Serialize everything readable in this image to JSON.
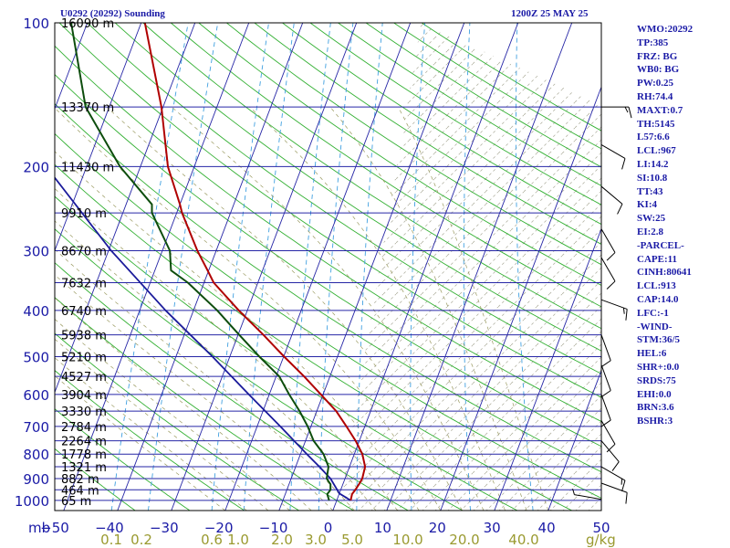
{
  "header": {
    "station_title": "U0292 (20292) Sounding",
    "time_label": "1200Z 25 MAY 25"
  },
  "indices": [
    "WMO:20292",
    "TP:385",
    "FRZ: BG",
    "WB0: BG",
    "PW:0.25",
    "RH:74.4",
    "MAXT:0.7",
    "TH:5145",
    "L57:6.6",
    "LCL:967",
    "LI:14.2",
    "SI:10.8",
    "TT:43",
    "KI:4",
    "SW:25",
    "EI:2.8",
    "-PARCEL-",
    "CAPE:11",
    "CINH:80641",
    "LCL:913",
    "CAP:14.0",
    "LFC:-1",
    "-WIND-",
    "STM:36/5",
    "HEL:6",
    "SHR+:0.0",
    "SRDS:75",
    "EHI:0.0",
    "BRN:3.6",
    "BSHR:3"
  ],
  "colors": {
    "isobar": "#2626a6",
    "temperature": "#b00000",
    "dewpoint": "#0d4d0d",
    "parcel": "#1a1a9a",
    "dry_adiabat": "#33b033",
    "moist_adiabat": "#9a9a60",
    "mixing_ratio": "#40a0e0",
    "wind_barb": "#000000",
    "axis_text": "#1a1aa6",
    "mixing_text": "#9a9a30"
  },
  "chart_data": {
    "type": "skewt",
    "pressure_unit": "mb",
    "pressure_levels": [
      100,
      200,
      300,
      400,
      500,
      600,
      700,
      800,
      900,
      1000
    ],
    "temperature_ticks": [
      -50,
      -40,
      -30,
      -20,
      -10,
      0,
      10,
      20,
      30,
      40,
      50
    ],
    "mixing_ratio_labels": [
      "0.1",
      "0.2",
      "0.6",
      "1.0",
      "2.0",
      "3.0",
      "5.0",
      "10.0",
      "20.0",
      "40.0"
    ],
    "mixing_ratio_unit": "g/kg",
    "heights": [
      {
        "p": 100,
        "label": "16090 m"
      },
      {
        "p": 150,
        "label": "13370 m"
      },
      {
        "p": 200,
        "label": "11430 m"
      },
      {
        "p": 250,
        "label": "9910 m"
      },
      {
        "p": 300,
        "label": "8670 m"
      },
      {
        "p": 350,
        "label": "7632 m"
      },
      {
        "p": 400,
        "label": "6740 m"
      },
      {
        "p": 450,
        "label": "5938 m"
      },
      {
        "p": 500,
        "label": "5210 m"
      },
      {
        "p": 550,
        "label": "4527 m"
      },
      {
        "p": 600,
        "label": "3904 m"
      },
      {
        "p": 650,
        "label": "3330 m"
      },
      {
        "p": 700,
        "label": "2784 m"
      },
      {
        "p": 750,
        "label": "2264 m"
      },
      {
        "p": 800,
        "label": "1778 m"
      },
      {
        "p": 850,
        "label": "1321 m"
      },
      {
        "p": 900,
        "label": "882 m"
      },
      {
        "p": 950,
        "label": "464 m"
      },
      {
        "p": 1000,
        "label": "65 m"
      }
    ],
    "temperature": [
      {
        "p": 1000,
        "t": 2.6
      },
      {
        "p": 970,
        "t": 2.4
      },
      {
        "p": 950,
        "t": 2.7
      },
      {
        "p": 925,
        "t": 3.0
      },
      {
        "p": 900,
        "t": 3.2
      },
      {
        "p": 850,
        "t": 2.9
      },
      {
        "p": 800,
        "t": 1.5
      },
      {
        "p": 750,
        "t": -0.7
      },
      {
        "p": 700,
        "t": -3.4
      },
      {
        "p": 650,
        "t": -6.4
      },
      {
        "p": 600,
        "t": -10.4
      },
      {
        "p": 550,
        "t": -14.8
      },
      {
        "p": 500,
        "t": -19.9
      },
      {
        "p": 450,
        "t": -25.3
      },
      {
        "p": 400,
        "t": -31.6
      },
      {
        "p": 350,
        "t": -38.2
      },
      {
        "p": 330,
        "t": -40.2
      },
      {
        "p": 300,
        "t": -43.5
      },
      {
        "p": 250,
        "t": -49.0
      },
      {
        "p": 240,
        "t": -50.0
      },
      {
        "p": 200,
        "t": -54.9
      },
      {
        "p": 150,
        "t": -60.3
      },
      {
        "p": 100,
        "t": -69.3
      }
    ],
    "dewpoint": [
      {
        "p": 1000,
        "t": -1.4
      },
      {
        "p": 970,
        "t": -2.2
      },
      {
        "p": 950,
        "t": -1.9
      },
      {
        "p": 925,
        "t": -2.3
      },
      {
        "p": 900,
        "t": -3.4
      },
      {
        "p": 850,
        "t": -3.9
      },
      {
        "p": 800,
        "t": -5.7
      },
      {
        "p": 750,
        "t": -8.5
      },
      {
        "p": 700,
        "t": -10.6
      },
      {
        "p": 650,
        "t": -13.2
      },
      {
        "p": 600,
        "t": -16.3
      },
      {
        "p": 550,
        "t": -19.4
      },
      {
        "p": 500,
        "t": -24.5
      },
      {
        "p": 450,
        "t": -29.8
      },
      {
        "p": 400,
        "t": -35.6
      },
      {
        "p": 350,
        "t": -43.0
      },
      {
        "p": 330,
        "t": -47.0
      },
      {
        "p": 300,
        "t": -48.6
      },
      {
        "p": 250,
        "t": -54.6
      },
      {
        "p": 240,
        "t": -55.2
      },
      {
        "p": 200,
        "t": -63.8
      },
      {
        "p": 150,
        "t": -74.4
      },
      {
        "p": 100,
        "t": -83.0
      }
    ],
    "parcel": [
      {
        "p": 1000,
        "t": 2.6
      },
      {
        "p": 967,
        "t": 0.0
      },
      {
        "p": 900,
        "t": -2.7
      },
      {
        "p": 850,
        "t": -5.6
      },
      {
        "p": 800,
        "t": -8.8
      },
      {
        "p": 700,
        "t": -15.7
      },
      {
        "p": 600,
        "t": -23.8
      },
      {
        "p": 500,
        "t": -33.2
      },
      {
        "p": 400,
        "t": -45.2
      },
      {
        "p": 300,
        "t": -59.5
      },
      {
        "p": 200,
        "t": -77.5
      },
      {
        "p": 150,
        "t": -89.5
      },
      {
        "p": 100,
        "t": -105.0
      }
    ],
    "wind": [
      {
        "p": 995,
        "dir": 100,
        "spd": 5
      },
      {
        "p": 920,
        "dir": 290,
        "spd": 10
      },
      {
        "p": 850,
        "dir": 300,
        "spd": 15
      },
      {
        "p": 750,
        "dir": 320,
        "spd": 10
      },
      {
        "p": 680,
        "dir": 330,
        "spd": 10
      },
      {
        "p": 600,
        "dir": 340,
        "spd": 10
      },
      {
        "p": 520,
        "dir": 340,
        "spd": 10
      },
      {
        "p": 450,
        "dir": 340,
        "spd": 10
      },
      {
        "p": 380,
        "dir": 290,
        "spd": 15
      },
      {
        "p": 310,
        "dir": 330,
        "spd": 10
      },
      {
        "p": 270,
        "dir": 330,
        "spd": 10
      },
      {
        "p": 220,
        "dir": 310,
        "spd": 10
      },
      {
        "p": 180,
        "dir": 300,
        "spd": 10
      },
      {
        "p": 150,
        "dir": 270,
        "spd": 15
      }
    ]
  }
}
